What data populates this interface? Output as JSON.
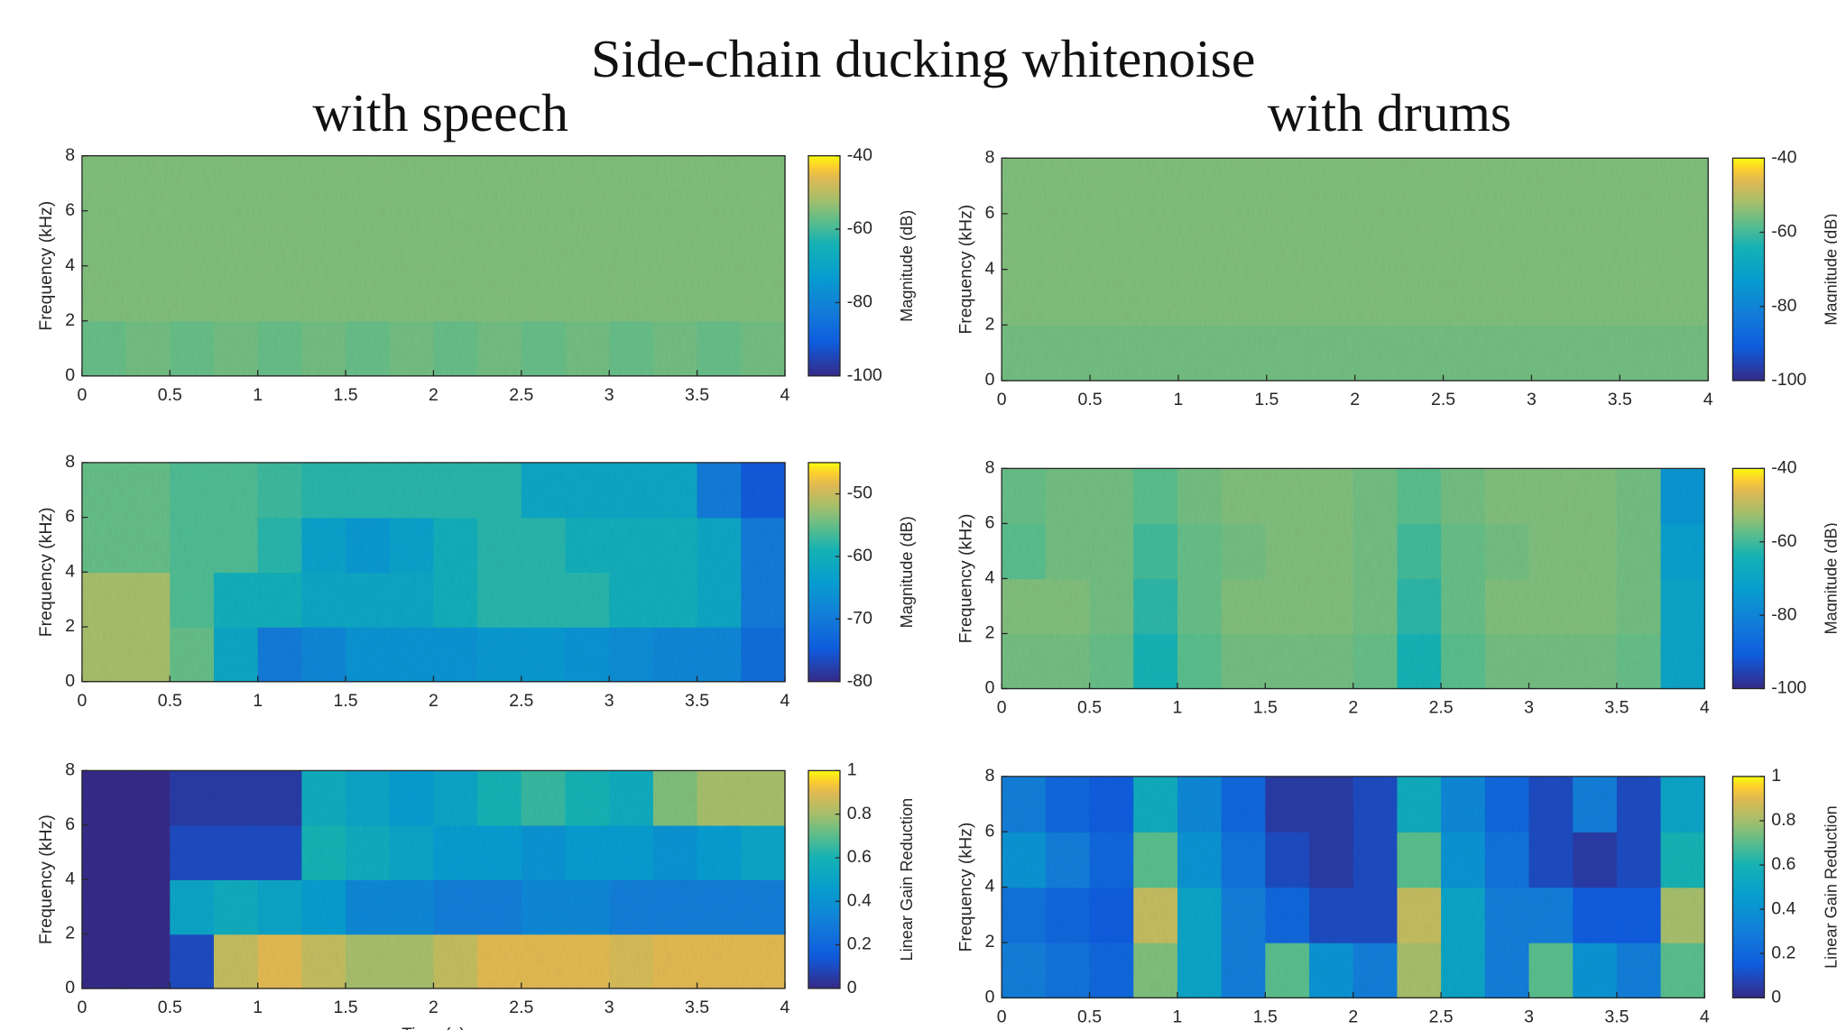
{
  "title": "Side-chain ducking whitenoise",
  "column_titles": [
    "with speech",
    "with drums"
  ],
  "chart_data": [
    {
      "type": "heatmap",
      "ylabel": "Frequency (kHz)",
      "clabel": "Magnitude (dB)",
      "colormap": "parula",
      "xlim": [
        0,
        4
      ],
      "ylim": [
        0,
        8
      ],
      "xticks": [
        0,
        0.5,
        1,
        1.5,
        2,
        2.5,
        3,
        3.5,
        4
      ],
      "yticks": [
        0,
        2,
        4,
        6,
        8
      ],
      "clim": [
        -100,
        -40
      ],
      "cticks": [
        -100,
        -80,
        -60,
        -40
      ],
      "values": [
        [
          -57,
          -56,
          -57,
          -56,
          -57,
          -56,
          -57,
          -56,
          -57,
          -56,
          -57,
          -56,
          -57,
          -56,
          -57,
          -56
        ],
        [
          -55,
          -55,
          -55,
          -55,
          -55,
          -55,
          -55,
          -55,
          -55,
          -55,
          -55,
          -55,
          -55,
          -55,
          -55,
          -55
        ],
        [
          -55,
          -55,
          -55,
          -55,
          -55,
          -55,
          -55,
          -55,
          -55,
          -55,
          -55,
          -55,
          -55,
          -55,
          -55,
          -55
        ],
        [
          -55,
          -55,
          -55,
          -55,
          -55,
          -55,
          -55,
          -55,
          -55,
          -55,
          -55,
          -55,
          -55,
          -55,
          -55,
          -55
        ]
      ]
    },
    {
      "type": "heatmap",
      "ylabel": "Frequency (kHz)",
      "clabel": "Magnitude (dB)",
      "colormap": "parula",
      "xlim": [
        0,
        4
      ],
      "ylim": [
        0,
        8
      ],
      "xticks": [
        0,
        0.5,
        1,
        1.5,
        2,
        2.5,
        3,
        3.5,
        4
      ],
      "yticks": [
        0,
        2,
        4,
        6,
        8
      ],
      "clim": [
        -80,
        -45
      ],
      "cticks": [
        -80,
        -70,
        -60,
        -50
      ],
      "values": [
        [
          -52,
          -52,
          -55,
          -62,
          -70,
          -68,
          -66,
          -66,
          -66,
          -65,
          -65,
          -66,
          -67,
          -68,
          -68,
          -72
        ],
        [
          -52,
          -52,
          -56,
          -60,
          -60,
          -62,
          -62,
          -62,
          -60,
          -58,
          -58,
          -58,
          -60,
          -60,
          -62,
          -70
        ],
        [
          -55,
          -55,
          -56,
          -56,
          -58,
          -63,
          -65,
          -63,
          -60,
          -58,
          -58,
          -60,
          -60,
          -60,
          -62,
          -70
        ],
        [
          -55,
          -55,
          -56,
          -56,
          -57,
          -58,
          -58,
          -58,
          -58,
          -58,
          -62,
          -62,
          -62,
          -62,
          -70,
          -75
        ]
      ]
    },
    {
      "type": "heatmap",
      "ylabel": "Frequency (kHz)",
      "clabel": "Linear Gain Reduction",
      "xlabel": "Time (s)",
      "colormap": "parula",
      "xlim": [
        0,
        4
      ],
      "ylim": [
        0,
        8
      ],
      "xticks": [
        0,
        0.5,
        1,
        1.5,
        2,
        2.5,
        3,
        3.5,
        4
      ],
      "yticks": [
        0,
        2,
        4,
        6,
        8
      ],
      "clim": [
        0,
        1
      ],
      "cticks": [
        0,
        0.2,
        0.4,
        0.6,
        0.8,
        1
      ],
      "values": [
        [
          0,
          0,
          0.1,
          0.85,
          0.9,
          0.85,
          0.8,
          0.8,
          0.85,
          0.9,
          0.9,
          0.9,
          0.88,
          0.9,
          0.9,
          0.9
        ],
        [
          0,
          0,
          0.5,
          0.55,
          0.5,
          0.45,
          0.35,
          0.35,
          0.3,
          0.3,
          0.35,
          0.35,
          0.3,
          0.3,
          0.3,
          0.3
        ],
        [
          0,
          0,
          0.1,
          0.1,
          0.1,
          0.6,
          0.55,
          0.5,
          0.45,
          0.45,
          0.4,
          0.45,
          0.45,
          0.4,
          0.45,
          0.5
        ],
        [
          0,
          0,
          0.05,
          0.05,
          0.05,
          0.55,
          0.5,
          0.45,
          0.5,
          0.6,
          0.65,
          0.6,
          0.55,
          0.75,
          0.8,
          0.8
        ]
      ]
    },
    {
      "type": "heatmap",
      "ylabel": "Frequency (kHz)",
      "clabel": "Magnitude (dB)",
      "colormap": "parula",
      "xlim": [
        0,
        4
      ],
      "ylim": [
        0,
        8
      ],
      "xticks": [
        0,
        0.5,
        1,
        1.5,
        2,
        2.5,
        3,
        3.5,
        4
      ],
      "yticks": [
        0,
        2,
        4,
        6,
        8
      ],
      "clim": [
        -100,
        -40
      ],
      "cticks": [
        -100,
        -80,
        -60,
        -40
      ],
      "values": [
        [
          -56,
          -56,
          -56,
          -56,
          -56,
          -56,
          -56,
          -56,
          -56,
          -56,
          -56,
          -56,
          -56,
          -56,
          -56,
          -56
        ],
        [
          -55,
          -55,
          -55,
          -55,
          -55,
          -55,
          -55,
          -55,
          -55,
          -55,
          -55,
          -55,
          -55,
          -55,
          -55,
          -55
        ],
        [
          -55,
          -55,
          -55,
          -55,
          -55,
          -55,
          -55,
          -55,
          -55,
          -55,
          -55,
          -55,
          -55,
          -55,
          -55,
          -55
        ],
        [
          -55,
          -55,
          -55,
          -55,
          -55,
          -55,
          -55,
          -55,
          -55,
          -55,
          -55,
          -55,
          -55,
          -55,
          -55,
          -55
        ]
      ]
    },
    {
      "type": "heatmap",
      "ylabel": "Frequency (kHz)",
      "clabel": "Magnitude (dB)",
      "colormap": "parula",
      "xlim": [
        0,
        4
      ],
      "ylim": [
        0,
        8
      ],
      "xticks": [
        0,
        0.5,
        1,
        1.5,
        2,
        2.5,
        3,
        3.5,
        4
      ],
      "yticks": [
        0,
        2,
        4,
        6,
        8
      ],
      "clim": [
        -100,
        -40
      ],
      "cticks": [
        -100,
        -80,
        -60,
        -40
      ],
      "values": [
        [
          -56,
          -56,
          -57,
          -64,
          -58,
          -56,
          -56,
          -56,
          -57,
          -64,
          -58,
          -56,
          -56,
          -56,
          -57,
          -70
        ],
        [
          -55,
          -55,
          -56,
          -62,
          -57,
          -55,
          -55,
          -55,
          -56,
          -62,
          -57,
          -55,
          -55,
          -55,
          -56,
          -70
        ],
        [
          -58,
          -56,
          -56,
          -60,
          -57,
          -56,
          -55,
          -55,
          -56,
          -60,
          -57,
          -56,
          -55,
          -55,
          -56,
          -72
        ],
        [
          -57,
          -56,
          -56,
          -58,
          -56,
          -55,
          -55,
          -55,
          -56,
          -58,
          -56,
          -55,
          -55,
          -55,
          -56,
          -75
        ]
      ]
    },
    {
      "type": "heatmap",
      "ylabel": "Frequency (kHz)",
      "clabel": "Linear Gain Reduction",
      "colormap": "parula",
      "xlim": [
        0,
        4
      ],
      "ylim": [
        0,
        8
      ],
      "xticks": [
        0,
        0.5,
        1,
        1.5,
        2,
        2.5,
        3,
        3.5,
        4
      ],
      "yticks": [
        0,
        2,
        4,
        6,
        8
      ],
      "clim": [
        0,
        1
      ],
      "cticks": [
        0,
        0.2,
        0.4,
        0.6,
        0.8,
        1
      ],
      "values": [
        [
          0.3,
          0.25,
          0.2,
          0.75,
          0.5,
          0.3,
          0.7,
          0.4,
          0.3,
          0.8,
          0.5,
          0.3,
          0.7,
          0.4,
          0.3,
          0.7
        ],
        [
          0.25,
          0.2,
          0.15,
          0.85,
          0.5,
          0.3,
          0.2,
          0.1,
          0.1,
          0.85,
          0.5,
          0.3,
          0.3,
          0.15,
          0.15,
          0.8
        ],
        [
          0.4,
          0.3,
          0.2,
          0.7,
          0.4,
          0.25,
          0.1,
          0.05,
          0.1,
          0.7,
          0.4,
          0.25,
          0.1,
          0.05,
          0.1,
          0.6
        ],
        [
          0.3,
          0.2,
          0.15,
          0.55,
          0.35,
          0.2,
          0.05,
          0.05,
          0.1,
          0.55,
          0.35,
          0.2,
          0.1,
          0.3,
          0.1,
          0.5
        ]
      ]
    }
  ]
}
